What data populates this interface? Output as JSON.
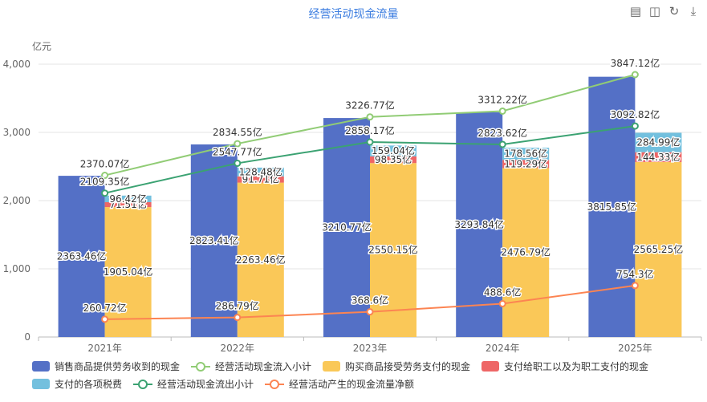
{
  "chart_data": {
    "type": "bar",
    "title": "经营活动现金流量",
    "ylabel": "亿元",
    "ylim": [
      0,
      4000
    ],
    "y_ticks": [
      "0",
      "1,000",
      "2,000",
      "3,000",
      "4,000"
    ],
    "categories": [
      "2021年",
      "2022年",
      "2023年",
      "2024年",
      "2025年"
    ],
    "bar_series": [
      {
        "name": "销售商品提供劳务收到的现金",
        "color": "#5470c6",
        "stack": "inflow",
        "values": [
          2363.46,
          2823.41,
          3210.77,
          3293.84,
          3815.85
        ],
        "labels": [
          "2363.46亿",
          "2823.41亿",
          "3210.77亿",
          "3293.84亿",
          "3815.85亿"
        ]
      },
      {
        "name": "购买商品接受劳务支付的现金",
        "color": "#fac858",
        "stack": "outflow",
        "values": [
          1905.04,
          2263.46,
          2550.15,
          2476.79,
          2565.25
        ],
        "labels": [
          "1905.04亿",
          "2263.46亿",
          "2550.15亿",
          "2476.79亿",
          "2565.25亿"
        ]
      },
      {
        "name": "支付给职工以及为职工支付的现金",
        "color": "#ee6666",
        "stack": "outflow",
        "values": [
          71.51,
          91.71,
          98.35,
          119.29,
          144.33
        ],
        "labels": [
          "71.51亿",
          "91.71亿",
          "98.35亿",
          "119.29亿",
          "144.33亿"
        ]
      },
      {
        "name": "支付的各项税费",
        "color": "#73c0de",
        "stack": "outflow",
        "values": [
          96.42,
          128.48,
          159.04,
          178.56,
          284.99
        ],
        "labels": [
          "96.42亿",
          "128.48亿",
          "159.04亿",
          "178.56亿",
          "284.99亿"
        ]
      }
    ],
    "line_series": [
      {
        "name": "经营活动现金流入小计",
        "color": "#91cc75",
        "values": [
          2370.07,
          2834.55,
          3226.77,
          3312.22,
          3847.12
        ],
        "labels": [
          "2370.07亿",
          "2834.55亿",
          "3226.77亿",
          "3312.22亿",
          "3847.12亿"
        ]
      },
      {
        "name": "经营活动现金流出小计",
        "color": "#3ba272",
        "values": [
          2109.35,
          2547.77,
          2858.17,
          2823.62,
          3092.82
        ],
        "labels": [
          "2109.35亿",
          "2547.77亿",
          "2858.17亿",
          "2823.62亿",
          "3092.82亿"
        ]
      },
      {
        "name": "经营活动产生的现金流量净额",
        "color": "#fc8452",
        "values": [
          260.72,
          286.79,
          368.6,
          488.6,
          754.3
        ],
        "labels": [
          "260.72亿",
          "286.79亿",
          "368.6亿",
          "488.6亿",
          "754.3亿"
        ]
      }
    ],
    "legend": [
      {
        "name": "销售商品提供劳务收到的现金",
        "kind": "bar",
        "color": "#5470c6"
      },
      {
        "name": "经营活动现金流入小计",
        "kind": "line",
        "color": "#91cc75"
      },
      {
        "name": "购买商品接受劳务支付的现金",
        "kind": "bar",
        "color": "#fac858"
      },
      {
        "name": "支付给职工以及为职工支付的现金",
        "kind": "bar",
        "color": "#ee6666"
      },
      {
        "name": "支付的各项税费",
        "kind": "bar",
        "color": "#73c0de"
      },
      {
        "name": "经营活动现金流出小计",
        "kind": "line",
        "color": "#3ba272"
      },
      {
        "name": "经营活动产生的现金流量净额",
        "kind": "line",
        "color": "#fc8452"
      }
    ],
    "legend_position": "bottom",
    "grid": true
  },
  "toolbar": {
    "icons": [
      "data-view-icon",
      "magic-type-icon",
      "restore-icon",
      "save-image-icon"
    ]
  }
}
